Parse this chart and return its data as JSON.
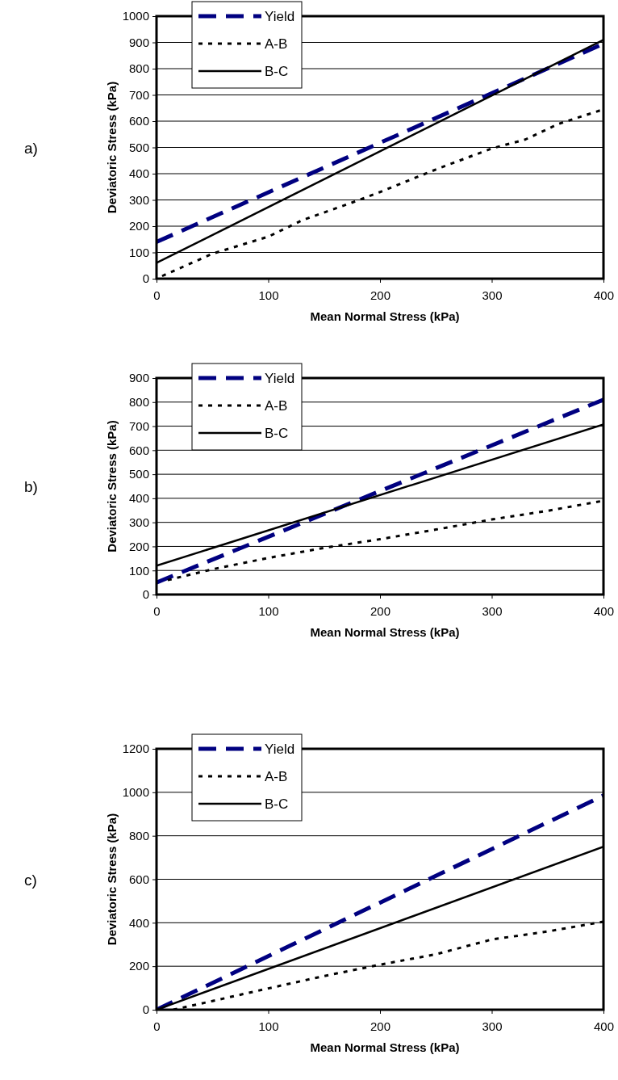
{
  "chart_data": [
    {
      "type": "line",
      "xlabel": "Mean Normal Stress (kPa)",
      "ylabel": "Deviatoric Stress (kPa)",
      "annotations": [
        "a)"
      ],
      "xlim": [
        0,
        400
      ],
      "xticks": [
        0,
        100,
        200,
        300,
        400
      ],
      "ylim": [
        0,
        1000
      ],
      "yticks": [
        0,
        100,
        200,
        300,
        400,
        500,
        600,
        700,
        800,
        900,
        1000
      ],
      "grid": "y",
      "legend": "top left",
      "series": [
        {
          "name": "Yield",
          "color": "#000080",
          "line_style": "dashed",
          "x": [
            0,
            400
          ],
          "values": [
            140,
            895
          ]
        },
        {
          "name": "A-B",
          "color": "#000000",
          "line_style": "dotted",
          "x": [
            5,
            50,
            100,
            130,
            175,
            200,
            250,
            300,
            330,
            360,
            400
          ],
          "values": [
            10,
            95,
            160,
            222,
            290,
            330,
            416,
            496,
            530,
            590,
            645
          ]
        },
        {
          "name": "B-C",
          "color": "#000000",
          "line_style": "solid",
          "x": [
            0,
            400
          ],
          "values": [
            60,
            910
          ]
        }
      ]
    },
    {
      "type": "line",
      "xlabel": "Mean Normal Stress (kPa)",
      "ylabel": "Deviatoric Stress (kPa)",
      "annotations": [
        "b)"
      ],
      "xlim": [
        0,
        400
      ],
      "xticks": [
        0,
        100,
        200,
        300,
        400
      ],
      "ylim": [
        0,
        900
      ],
      "yticks": [
        0,
        100,
        200,
        300,
        400,
        500,
        600,
        700,
        800,
        900
      ],
      "grid": "y",
      "legend": "top left",
      "series": [
        {
          "name": "Yield",
          "color": "#000080",
          "line_style": "dashed",
          "x": [
            0,
            400
          ],
          "values": [
            50,
            810
          ]
        },
        {
          "name": "A-B",
          "color": "#000000",
          "line_style": "dotted",
          "x": [
            10,
            50,
            100,
            150,
            200,
            250,
            300,
            350,
            400
          ],
          "values": [
            60,
            105,
            152,
            194,
            230,
            270,
            312,
            348,
            390
          ]
        },
        {
          "name": "B-C",
          "color": "#000000",
          "line_style": "solid",
          "x": [
            0,
            400
          ],
          "values": [
            120,
            707
          ]
        }
      ]
    },
    {
      "type": "line",
      "xlabel": "Mean Normal Stress (kPa)",
      "ylabel": "Deviatoric Stress (kPa)",
      "annotations": [
        "c)"
      ],
      "xlim": [
        0,
        400
      ],
      "xticks": [
        0,
        100,
        200,
        300,
        400
      ],
      "ylim": [
        0,
        1200
      ],
      "yticks": [
        0,
        200,
        400,
        600,
        800,
        1000,
        1200
      ],
      "grid": "y",
      "legend": "top left",
      "series": [
        {
          "name": "Yield",
          "color": "#000080",
          "line_style": "dashed",
          "x": [
            0,
            400
          ],
          "values": [
            0,
            985
          ]
        },
        {
          "name": "A-B",
          "color": "#000000",
          "line_style": "dotted",
          "x": [
            15,
            50,
            100,
            150,
            200,
            250,
            300,
            350,
            400
          ],
          "values": [
            0,
            40,
            98,
            155,
            207,
            255,
            323,
            360,
            405
          ]
        },
        {
          "name": "B-C",
          "color": "#000000",
          "line_style": "solid",
          "x": [
            0,
            400
          ],
          "values": [
            0,
            750
          ]
        }
      ]
    }
  ]
}
